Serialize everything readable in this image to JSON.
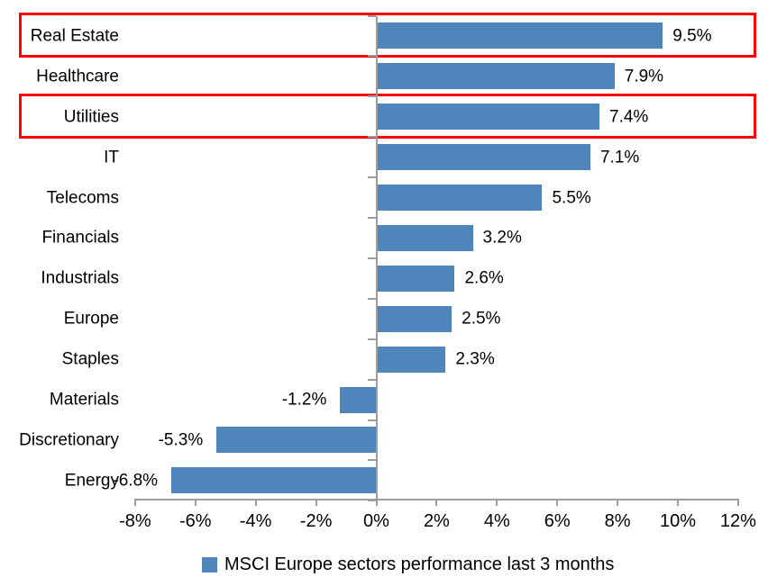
{
  "chart_data": {
    "type": "bar",
    "orientation": "horizontal",
    "categories": [
      "Real Estate",
      "Healthcare",
      "Utilities",
      "IT",
      "Telecoms",
      "Financials",
      "Industrials",
      "Europe",
      "Staples",
      "Materials",
      "Discretionary",
      "Energy"
    ],
    "values": [
      9.5,
      7.9,
      7.4,
      7.1,
      5.5,
      3.2,
      2.6,
      2.5,
      2.3,
      -1.2,
      -5.3,
      -6.8
    ],
    "value_labels": [
      "9.5%",
      "7.9%",
      "7.4%",
      "7.1%",
      "5.5%",
      "3.2%",
      "2.6%",
      "2.5%",
      "2.3%",
      "-1.2%",
      "-5.3%",
      "-6.8%"
    ],
    "x_tick_values": [
      -8,
      -6,
      -4,
      -2,
      0,
      2,
      4,
      6,
      8,
      10,
      12
    ],
    "x_tick_labels": [
      "-8%",
      "-6%",
      "-4%",
      "-2%",
      "0%",
      "2%",
      "4%",
      "6%",
      "8%",
      "10%",
      "12%"
    ],
    "xlim": [
      -8,
      12
    ],
    "grid": false,
    "title": "",
    "xlabel": "",
    "ylabel": "",
    "legend": "MSCI Europe sectors performance last 3 months",
    "legend_position": "bottom",
    "bar_color": "#4E86BC",
    "axis_color": "#9D9D9D",
    "highlight_box_color": "#FF0000",
    "highlighted_categories": [
      "Real Estate",
      "Utilities"
    ]
  }
}
